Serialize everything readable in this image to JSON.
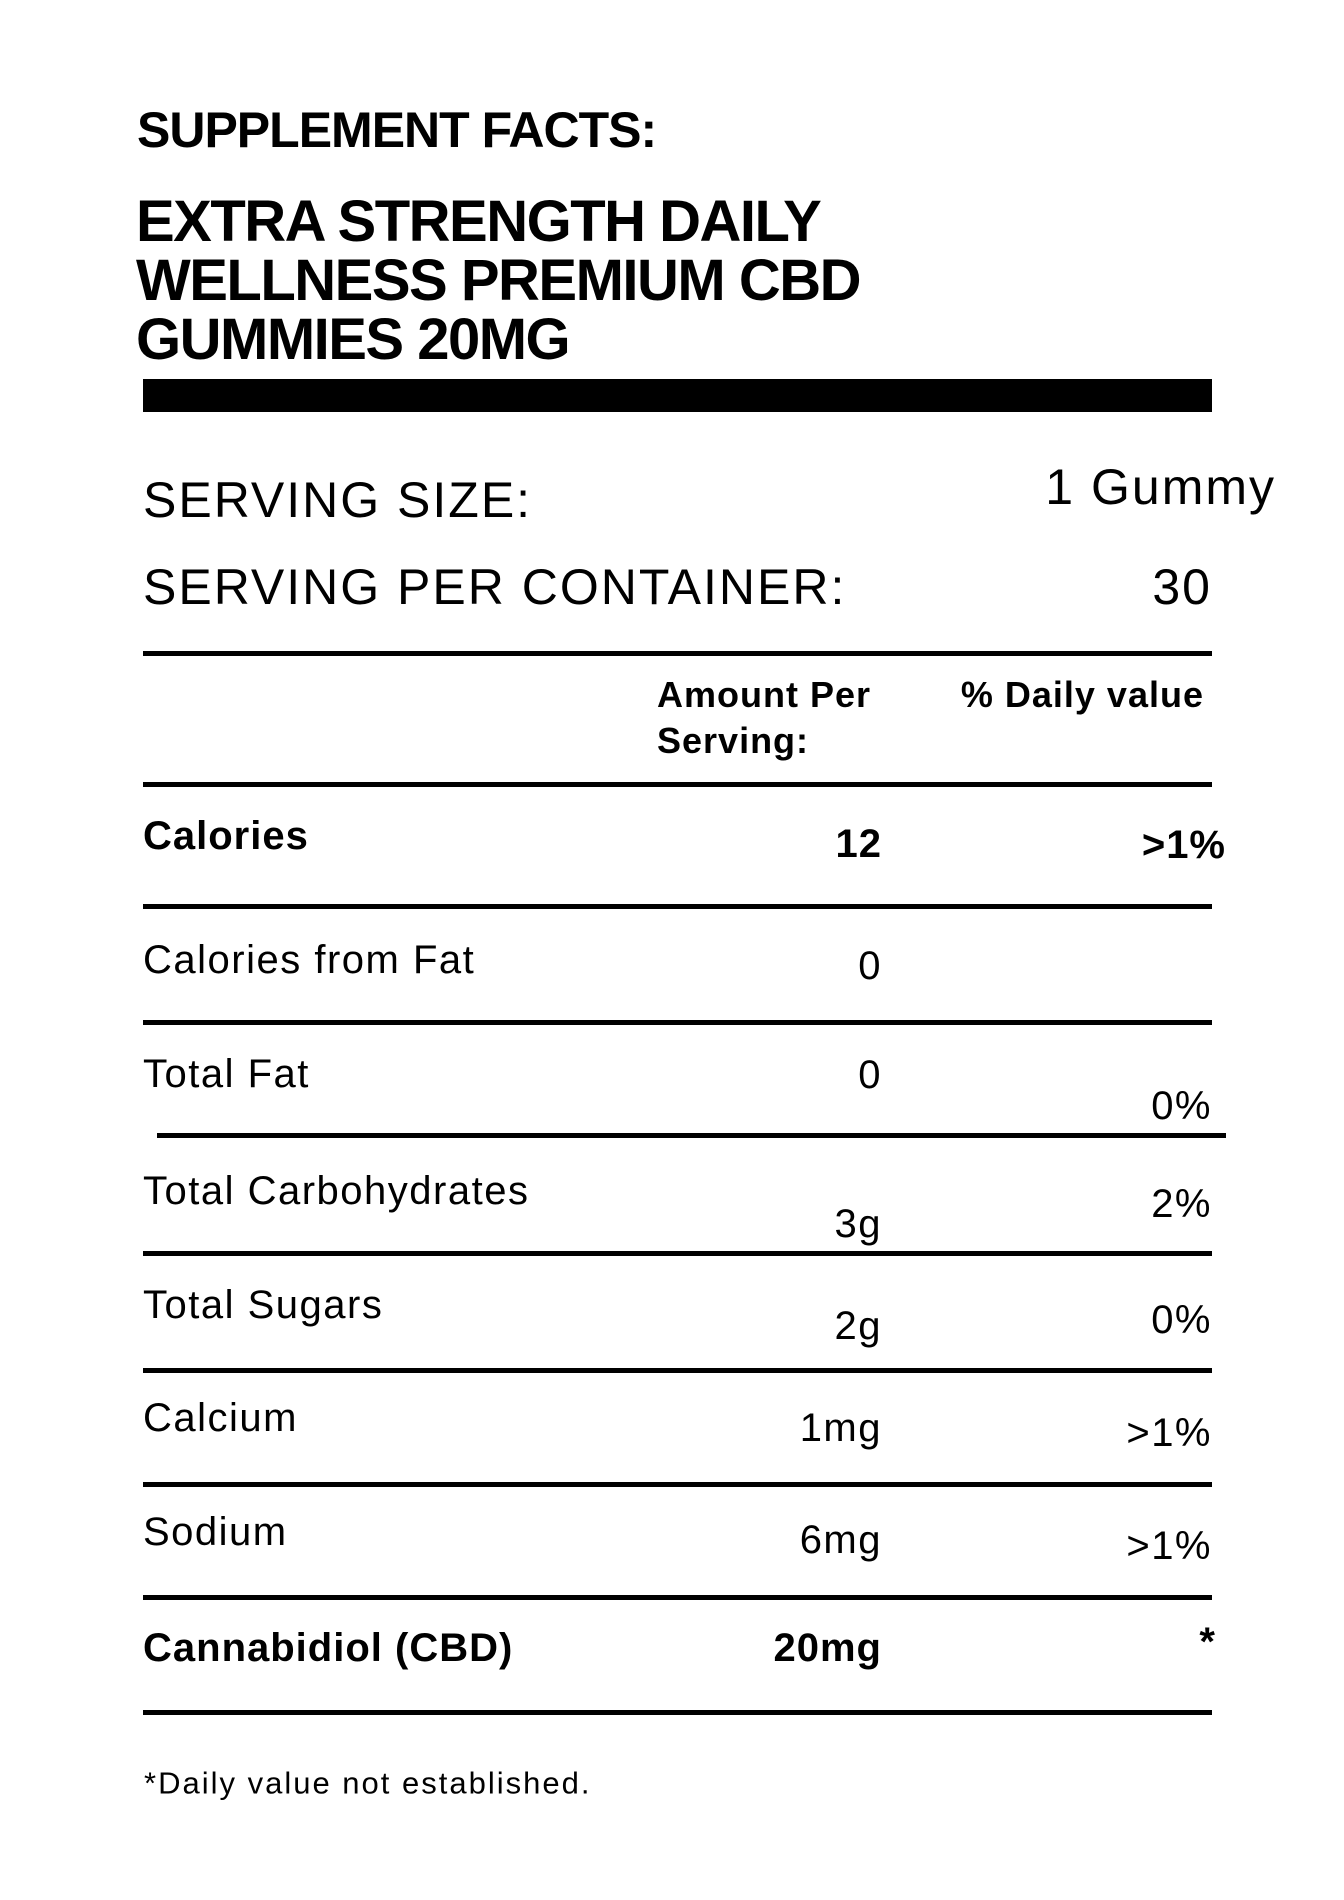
{
  "header": {
    "label": "SUPPLEMENT FACTS:",
    "title": [
      "EXTRA STRENGTH DAILY",
      "WELLNESS PREMIUM CBD",
      "GUMMIES 20MG"
    ]
  },
  "serving": {
    "size_label": "SERVING SIZE:",
    "size_value": "1 Gummy",
    "per_container_label": "SERVING PER CONTAINER:",
    "per_container_value": "30"
  },
  "columns": {
    "amount": [
      "Amount Per",
      "Serving:"
    ],
    "daily": "% Daily value"
  },
  "rows": [
    {
      "name": "Calories",
      "amount": "12",
      "daily": ">1%"
    },
    {
      "name": "Calories from Fat",
      "amount": "0",
      "daily": ""
    },
    {
      "name": "Total Fat",
      "amount": "0",
      "daily": "0%"
    },
    {
      "name": "Total Carbohydrates",
      "amount": "3g",
      "daily": "2%"
    },
    {
      "name": "Total Sugars",
      "amount": "2g",
      "daily": "0%"
    },
    {
      "name": "Calcium",
      "amount": "1mg",
      "daily": ">1%"
    },
    {
      "name": "Sodium",
      "amount": "6mg",
      "daily": ">1%"
    },
    {
      "name": "Cannabidiol (CBD)",
      "amount": "20mg",
      "daily": "*"
    }
  ],
  "footnote": "*Daily value not established."
}
